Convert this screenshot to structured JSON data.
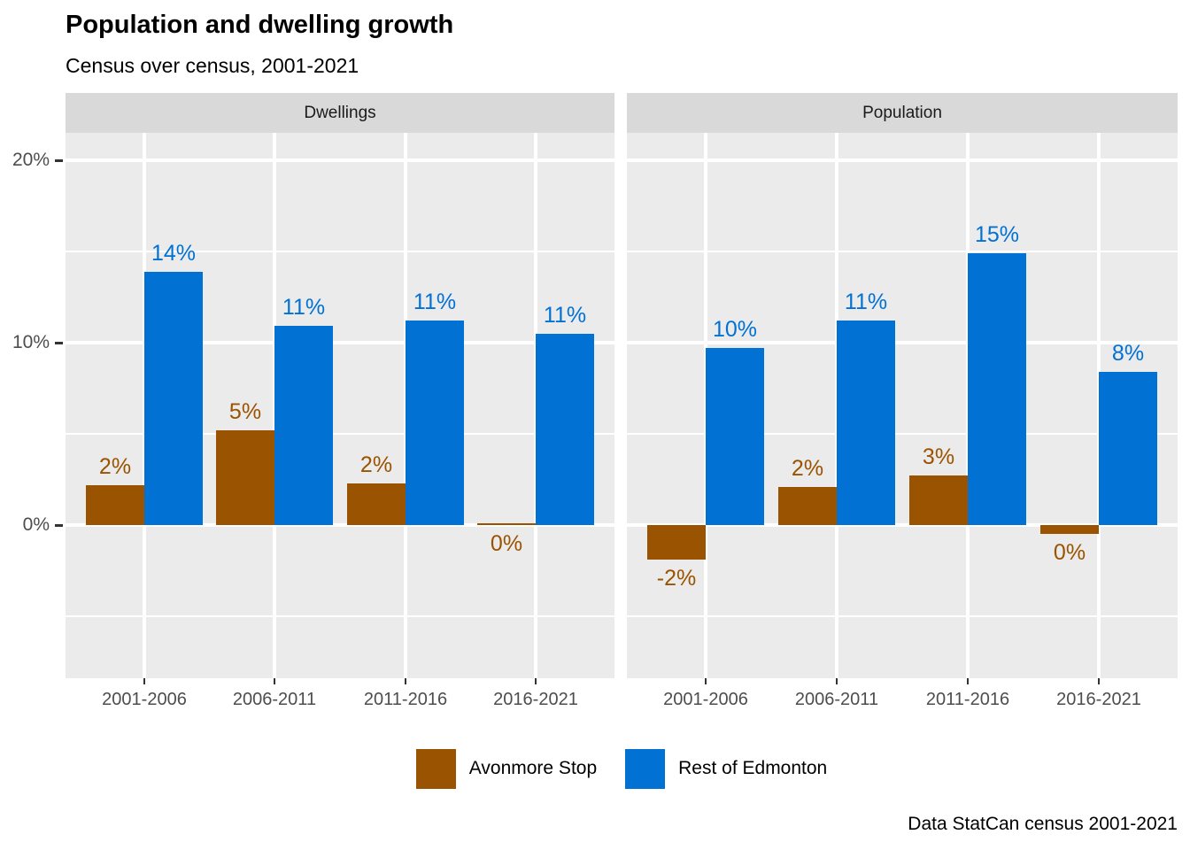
{
  "title": "Population and dwelling growth",
  "subtitle": "Census over census, 2001-2021",
  "caption": "Data StatCan census 2001-2021",
  "colors": {
    "avonmore": "#9a5300",
    "edmonton": "#0171d3",
    "panel_bg": "#ebebeb",
    "strip_bg": "#d9d9d9",
    "strip_text": "#1a1a1a",
    "grid": "#ffffff",
    "axis_text": "#4d4d4d",
    "tick_mark": "#333333"
  },
  "legend": {
    "position": "bottom",
    "items": [
      {
        "label": "Avonmore Stop",
        "color": "#9a5300"
      },
      {
        "label": "Rest of Edmonton",
        "color": "#0171d3"
      }
    ]
  },
  "y_axis": {
    "tick_labels": [
      "20%",
      "10%",
      "0%"
    ],
    "major_breaks": [
      20,
      10,
      0
    ],
    "minor_breaks": [
      15,
      5,
      -5
    ],
    "domain": [
      -8.4,
      21.5
    ],
    "unit": "percent"
  },
  "x_axis": {
    "tick_labels": [
      "2001-2006",
      "2006-2011",
      "2011-2016",
      "2016-2021"
    ]
  },
  "chart_data": {
    "type": "bar",
    "title": "Population and dwelling growth",
    "subtitle": "Census over census, 2001-2021",
    "caption": "Data StatCan census 2001-2021",
    "categories": [
      "2001-2006",
      "2006-2011",
      "2011-2016",
      "2016-2021"
    ],
    "ylim": [
      -8.4,
      21.5
    ],
    "grid": true,
    "legend_position": "bottom",
    "facets": [
      {
        "name": "Dwellings",
        "series": [
          {
            "name": "Avonmore Stop",
            "values": [
              2.2,
              5.2,
              2.3,
              0.1
            ],
            "labels": [
              "2%",
              "5%",
              "2%",
              "0%"
            ]
          },
          {
            "name": "Rest of Edmonton",
            "values": [
              13.9,
              10.9,
              11.2,
              10.5
            ],
            "labels": [
              "14%",
              "11%",
              "11%",
              "11%"
            ]
          }
        ]
      },
      {
        "name": "Population",
        "series": [
          {
            "name": "Avonmore Stop",
            "values": [
              -1.9,
              2.1,
              2.7,
              -0.5
            ],
            "labels": [
              "-2%",
              "2%",
              "3%",
              "0%"
            ]
          },
          {
            "name": "Rest of Edmonton",
            "values": [
              9.7,
              11.2,
              14.9,
              8.4
            ],
            "labels": [
              "10%",
              "11%",
              "15%",
              "8%"
            ]
          }
        ]
      }
    ]
  }
}
